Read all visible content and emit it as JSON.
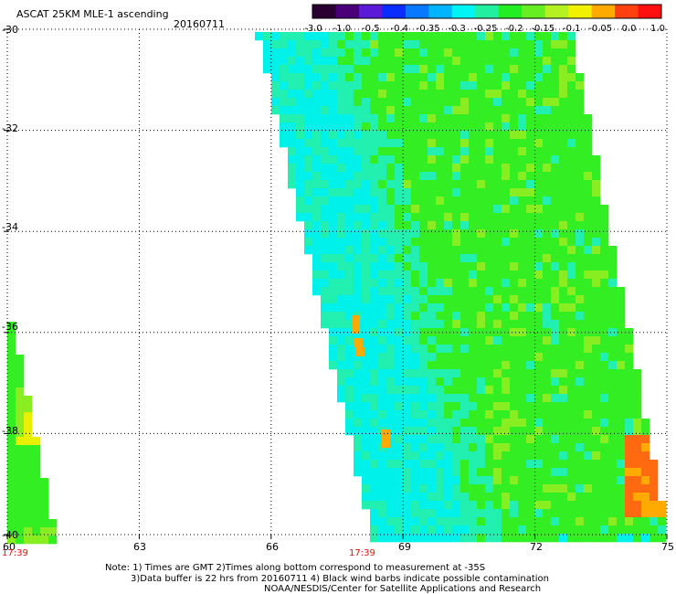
{
  "header": {
    "title": "ASCAT 25KM MLE-1 ascending",
    "date": "20160711"
  },
  "colorbar": {
    "labels": [
      "-3.0",
      "-1.0",
      "-0.5",
      "-0.4",
      "-0.35",
      "-0.3",
      "-0.25",
      "-0.2",
      "-0.15",
      "-0.1",
      "-0.05",
      "0.0",
      "1.0"
    ],
    "colors": [
      "#2a0030",
      "#4a0078",
      "#5a1ad8",
      "#0a2cff",
      "#0878ff",
      "#00b4ff",
      "#00f4f4",
      "#22f0a0",
      "#22ee22",
      "#66ee22",
      "#b4f022",
      "#f0f000",
      "#ffaa00",
      "#ff4010",
      "#ff1010"
    ]
  },
  "map": {
    "lat_labels": [
      "-30",
      "-32",
      "-34",
      "-36",
      "-38",
      "-40"
    ],
    "lon_labels": [
      "60",
      "63",
      "66",
      "69",
      "72",
      "75"
    ],
    "time_labels": [
      "17:39",
      "17:39"
    ],
    "lon_range": [
      60,
      75
    ],
    "lat_range": [
      -40,
      -30
    ]
  },
  "notes": {
    "line1": "Note: 1) Times are GMT 2)Times along bottom correspond to measurement at -35S",
    "line2": "3)Data buffer is 22 hrs from 20160711 4) Black wind barbs indicate possible contamination",
    "line3": "NOAA/NESDIS/Center for Satellite Applications and Research"
  },
  "palette": {
    "cyan": "#00f0ea",
    "aqua": "#22f0b0",
    "green": "#33ee22",
    "lime": "#88ee22",
    "yellow": "#e8f000",
    "orange": "#ffaa00",
    "red_orange": "#ff6a10"
  }
}
